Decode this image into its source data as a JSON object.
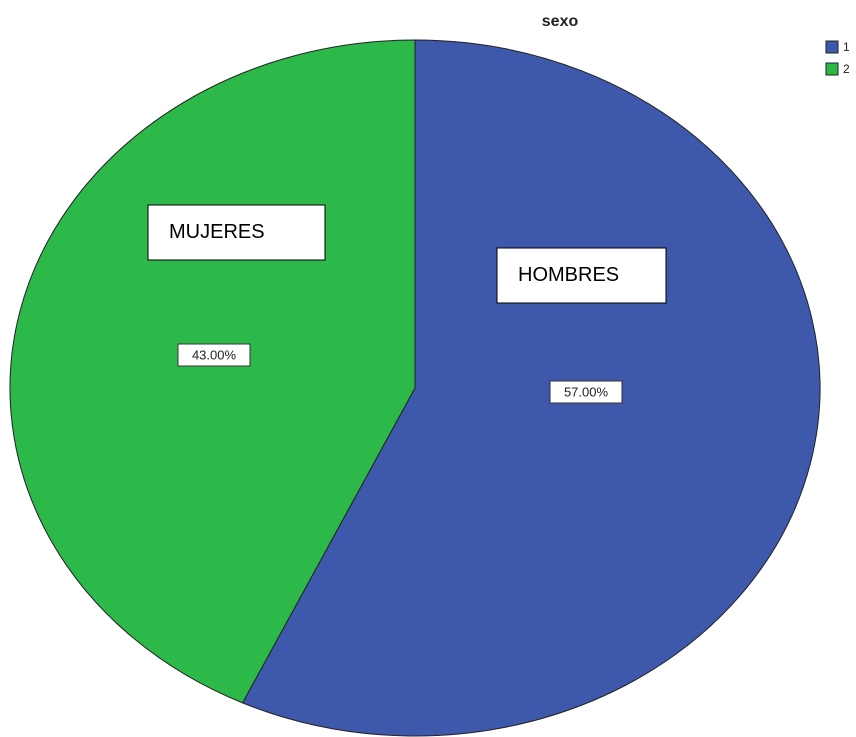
{
  "chart_data": {
    "type": "pie",
    "title": "sexo",
    "categories": [
      "1",
      "2"
    ],
    "values": [
      57,
      43
    ],
    "value_labels": [
      "57.00%",
      "43.00%"
    ],
    "colors": [
      "#3e58ac",
      "#2db84a"
    ],
    "legend": "top-right",
    "annotations": [
      "HOMBRES",
      "MUJERES"
    ]
  }
}
